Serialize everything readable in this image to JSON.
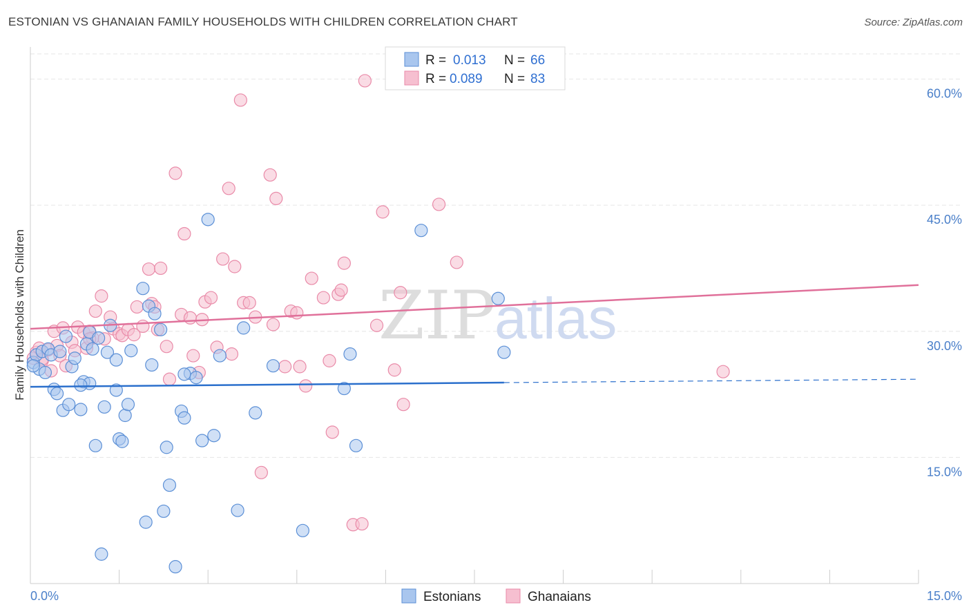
{
  "title": "ESTONIAN VS GHANAIAN FAMILY HOUSEHOLDS WITH CHILDREN CORRELATION CHART",
  "source": "Source: ZipAtlas.com",
  "watermark": {
    "part1": "ZIP",
    "part2": "atlas"
  },
  "legend_top": {
    "rows": [
      {
        "r_label": "R =",
        "r_value": "0.013",
        "n_label": "N =",
        "n_value": "66"
      },
      {
        "r_label": "R =",
        "r_value": "0.089",
        "n_label": "N =",
        "n_value": "83"
      }
    ]
  },
  "legend_bottom": {
    "items": [
      "Estonians",
      "Ghanaians"
    ]
  },
  "colors": {
    "estonian_fill": "#a9c6ee",
    "estonian_stroke": "#5b8fd6",
    "estonian_line": "#2a6fcc",
    "ghanaian_fill": "#f6bfd0",
    "ghanaian_stroke": "#e98aa8",
    "ghanaian_line": "#e0709a",
    "grid": "#e6e6e6",
    "tick_text": "#4a7fc9"
  },
  "chart_data": {
    "type": "scatter",
    "title": "ESTONIAN VS GHANAIAN FAMILY HOUSEHOLDS WITH CHILDREN CORRELATION CHART",
    "xlabel": "",
    "ylabel": "Family Households with Children",
    "xlim": [
      0,
      15
    ],
    "ylim": [
      0,
      63
    ],
    "x_tick_labels": [
      "0.0%",
      "15.0%"
    ],
    "y_ticks": [
      15,
      30,
      45,
      60
    ],
    "y_tick_labels": [
      "15.0%",
      "30.0%",
      "45.0%",
      "60.0%"
    ],
    "grid": true,
    "legend_placement": "top-center",
    "series": [
      {
        "name": "Estonians",
        "r": 0.013,
        "n": 66,
        "trend": {
          "x0": 0.0,
          "y0": 23.4,
          "x1": 8.0,
          "y1": 23.9,
          "dashed_to_x": 15.0,
          "dashed_to_y": 24.3
        },
        "points": [
          [
            0.05,
            26.3
          ],
          [
            0.1,
            27.2
          ],
          [
            0.15,
            25.5
          ],
          [
            0.2,
            27.6
          ],
          [
            0.25,
            25.1
          ],
          [
            0.3,
            27.9
          ],
          [
            0.35,
            27.2
          ],
          [
            0.4,
            23.1
          ],
          [
            0.45,
            22.6
          ],
          [
            0.5,
            27.6
          ],
          [
            0.6,
            29.4
          ],
          [
            0.7,
            25.8
          ],
          [
            0.75,
            26.8
          ],
          [
            0.85,
            20.7
          ],
          [
            0.9,
            24.0
          ],
          [
            0.95,
            28.5
          ],
          [
            1.0,
            29.9
          ],
          [
            1.05,
            27.9
          ],
          [
            1.0,
            23.8
          ],
          [
            1.1,
            16.4
          ],
          [
            1.2,
            3.5
          ],
          [
            1.25,
            21.0
          ],
          [
            1.3,
            27.5
          ],
          [
            1.35,
            30.7
          ],
          [
            1.45,
            23.0
          ],
          [
            1.5,
            17.2
          ],
          [
            1.55,
            16.9
          ],
          [
            1.6,
            20.0
          ],
          [
            1.65,
            21.3
          ],
          [
            1.7,
            27.7
          ],
          [
            1.9,
            35.1
          ],
          [
            1.95,
            7.3
          ],
          [
            2.0,
            33.0
          ],
          [
            2.05,
            26.0
          ],
          [
            2.1,
            32.1
          ],
          [
            2.2,
            30.2
          ],
          [
            2.25,
            8.6
          ],
          [
            2.3,
            16.2
          ],
          [
            2.35,
            11.7
          ],
          [
            2.45,
            2.0
          ],
          [
            2.55,
            20.5
          ],
          [
            2.6,
            19.7
          ],
          [
            2.7,
            25.0
          ],
          [
            2.8,
            24.5
          ],
          [
            2.9,
            17.0
          ],
          [
            3.0,
            43.3
          ],
          [
            3.1,
            17.6
          ],
          [
            3.2,
            27.1
          ],
          [
            3.5,
            8.7
          ],
          [
            3.6,
            30.4
          ],
          [
            3.8,
            20.3
          ],
          [
            4.1,
            25.9
          ],
          [
            4.6,
            6.3
          ],
          [
            5.3,
            23.2
          ],
          [
            5.4,
            27.3
          ],
          [
            5.5,
            16.4
          ],
          [
            6.6,
            42.0
          ],
          [
            7.9,
            33.9
          ],
          [
            8.0,
            27.5
          ],
          [
            0.05,
            25.9
          ],
          [
            0.85,
            23.6
          ],
          [
            1.15,
            29.2
          ],
          [
            0.55,
            20.6
          ],
          [
            0.65,
            21.3
          ],
          [
            2.6,
            24.9
          ],
          [
            1.45,
            26.6
          ]
        ]
      },
      {
        "name": "Ghanaians",
        "r": 0.089,
        "n": 83,
        "trend": {
          "x0": 0.0,
          "y0": 30.3,
          "x1": 15.0,
          "y1": 35.5
        },
        "points": [
          [
            0.05,
            26.8
          ],
          [
            0.1,
            27.5
          ],
          [
            0.15,
            28.0
          ],
          [
            0.2,
            26.5
          ],
          [
            0.3,
            27.8
          ],
          [
            0.35,
            25.3
          ],
          [
            0.4,
            30.0
          ],
          [
            0.45,
            28.3
          ],
          [
            0.5,
            27.1
          ],
          [
            0.55,
            30.4
          ],
          [
            0.6,
            25.9
          ],
          [
            0.7,
            28.7
          ],
          [
            0.75,
            27.7
          ],
          [
            0.8,
            30.5
          ],
          [
            0.9,
            29.9
          ],
          [
            0.95,
            28.0
          ],
          [
            1.0,
            30.0
          ],
          [
            1.05,
            29.2
          ],
          [
            1.1,
            32.4
          ],
          [
            1.2,
            34.2
          ],
          [
            1.25,
            29.1
          ],
          [
            1.35,
            31.7
          ],
          [
            1.4,
            30.3
          ],
          [
            1.5,
            29.7
          ],
          [
            1.55,
            29.5
          ],
          [
            1.65,
            30.2
          ],
          [
            1.75,
            29.6
          ],
          [
            1.8,
            32.9
          ],
          [
            1.9,
            30.6
          ],
          [
            2.0,
            37.4
          ],
          [
            2.05,
            33.3
          ],
          [
            2.1,
            32.9
          ],
          [
            2.15,
            30.2
          ],
          [
            2.2,
            37.5
          ],
          [
            2.3,
            28.2
          ],
          [
            2.35,
            24.3
          ],
          [
            2.45,
            48.8
          ],
          [
            2.55,
            32.0
          ],
          [
            2.6,
            41.6
          ],
          [
            2.7,
            31.6
          ],
          [
            2.75,
            27.1
          ],
          [
            2.85,
            25.1
          ],
          [
            2.9,
            31.4
          ],
          [
            2.95,
            33.5
          ],
          [
            3.05,
            34.0
          ],
          [
            3.15,
            28.1
          ],
          [
            3.25,
            38.6
          ],
          [
            3.35,
            47.0
          ],
          [
            3.4,
            27.3
          ],
          [
            3.45,
            37.7
          ],
          [
            3.55,
            57.5
          ],
          [
            3.6,
            33.4
          ],
          [
            3.7,
            33.4
          ],
          [
            3.8,
            31.7
          ],
          [
            3.9,
            13.2
          ],
          [
            4.05,
            48.6
          ],
          [
            4.1,
            30.8
          ],
          [
            4.15,
            45.8
          ],
          [
            4.3,
            25.8
          ],
          [
            4.4,
            32.4
          ],
          [
            4.5,
            32.2
          ],
          [
            4.55,
            25.8
          ],
          [
            4.65,
            23.5
          ],
          [
            4.75,
            36.3
          ],
          [
            4.95,
            34.0
          ],
          [
            5.05,
            26.5
          ],
          [
            5.1,
            18.0
          ],
          [
            5.2,
            34.4
          ],
          [
            5.25,
            34.9
          ],
          [
            5.3,
            38.1
          ],
          [
            5.45,
            7.0
          ],
          [
            5.6,
            7.1
          ],
          [
            5.65,
            59.8
          ],
          [
            5.85,
            30.7
          ],
          [
            5.95,
            44.2
          ],
          [
            6.15,
            25.4
          ],
          [
            6.25,
            34.6
          ],
          [
            6.3,
            21.3
          ],
          [
            6.9,
            45.1
          ],
          [
            7.2,
            38.2
          ],
          [
            11.7,
            25.2
          ],
          [
            0.2,
            26.7
          ],
          [
            1.0,
            29.1
          ]
        ]
      }
    ]
  }
}
